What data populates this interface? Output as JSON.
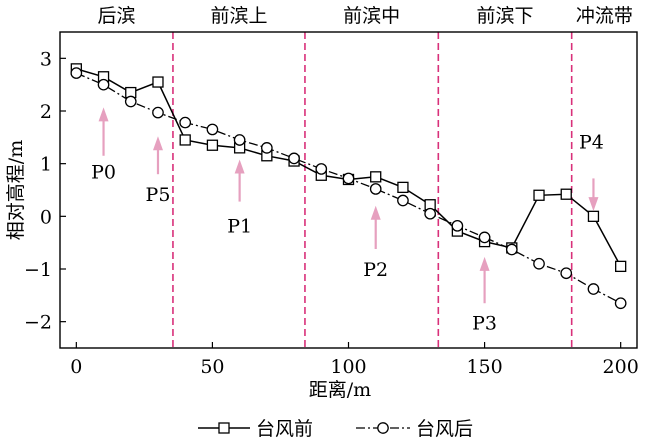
{
  "chart_data": {
    "type": "line",
    "xlabel": "距离/m",
    "ylabel": "相对高程/m",
    "xlim": [
      -6,
      206
    ],
    "ylim": [
      -2.5,
      3.5
    ],
    "xticks": [
      0,
      50,
      100,
      150,
      200
    ],
    "yticks": [
      -2,
      -1,
      0,
      1,
      2,
      3
    ],
    "ytick_labels": [
      "−2",
      "−1",
      "0",
      "1",
      "2",
      "3"
    ],
    "grid": false,
    "legend_position": "bottom",
    "zones": [
      {
        "label": "后滨",
        "x_start": -6,
        "x_end": 35.5
      },
      {
        "label": "前滨上",
        "x_start": 35.5,
        "x_end": 84
      },
      {
        "label": "前滨中",
        "x_start": 84,
        "x_end": 133
      },
      {
        "label": "前滨下",
        "x_start": 133,
        "x_end": 182
      },
      {
        "label": "冲流带",
        "x_start": 182,
        "x_end": 206
      }
    ],
    "zone_boundaries": [
      35.5,
      84,
      133,
      182
    ],
    "series": [
      {
        "name": "台风前",
        "marker": "square",
        "x": [
          0,
          10,
          20,
          30,
          40,
          50,
          60,
          70,
          80,
          90,
          100,
          110,
          120,
          130,
          140,
          150,
          160,
          170,
          180,
          190,
          200
        ],
        "y": [
          2.8,
          2.65,
          2.35,
          2.55,
          1.45,
          1.35,
          1.3,
          1.15,
          1.05,
          0.78,
          0.7,
          0.75,
          0.55,
          0.22,
          -0.28,
          -0.48,
          -0.6,
          0.4,
          0.42,
          0.0,
          -0.95
        ]
      },
      {
        "name": "台风后",
        "marker": "circle",
        "x": [
          0,
          10,
          20,
          30,
          40,
          50,
          60,
          70,
          80,
          90,
          100,
          110,
          120,
          130,
          140,
          150,
          160,
          170,
          180,
          190,
          200
        ],
        "y": [
          2.72,
          2.5,
          2.18,
          1.97,
          1.78,
          1.65,
          1.45,
          1.3,
          1.1,
          0.9,
          0.72,
          0.52,
          0.3,
          0.05,
          -0.18,
          -0.4,
          -0.63,
          -0.9,
          -1.08,
          -1.38,
          -1.65
        ]
      }
    ],
    "annotations": [
      {
        "label": "P0",
        "x": 10,
        "arrow_from_y": 2.07,
        "arrow_to_y": 1.15,
        "direction": "up",
        "label_y": 0.85
      },
      {
        "label": "P5",
        "x": 30,
        "arrow_from_y": 1.52,
        "arrow_to_y": 0.8,
        "direction": "up",
        "label_y": 0.42
      },
      {
        "label": "P1",
        "x": 60,
        "arrow_from_y": 1.08,
        "arrow_to_y": 0.28,
        "direction": "up",
        "label_y": -0.17
      },
      {
        "label": "P2",
        "x": 110,
        "arrow_from_y": 0.2,
        "arrow_to_y": -0.62,
        "direction": "up",
        "label_y": -1.0
      },
      {
        "label": "P3",
        "x": 150,
        "arrow_from_y": -0.77,
        "arrow_to_y": -1.65,
        "direction": "up",
        "label_y": -2.02
      },
      {
        "label": "P4",
        "x": 190,
        "arrow_from_y": 0.72,
        "arrow_to_y": 0.1,
        "direction": "down",
        "label_y": 1.42
      }
    ]
  }
}
